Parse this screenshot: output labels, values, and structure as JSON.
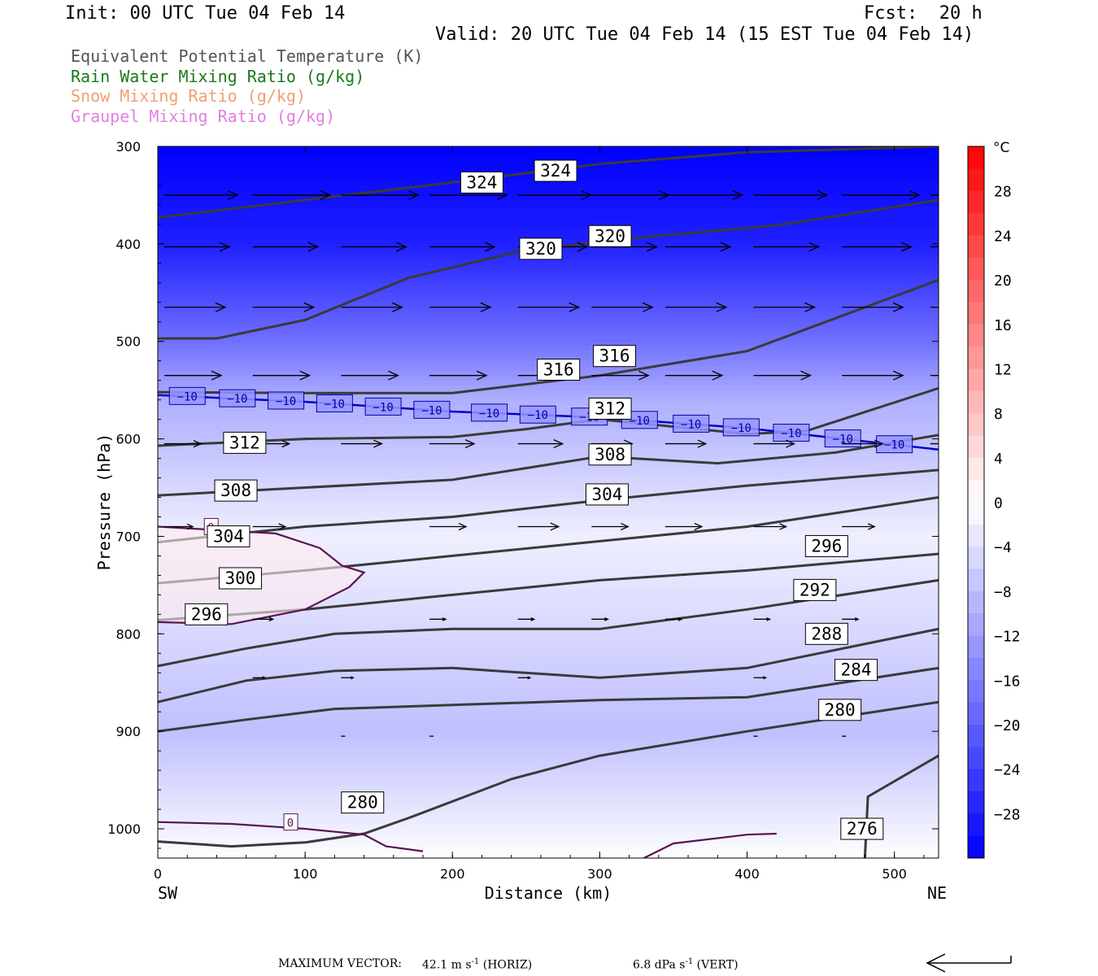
{
  "header": {
    "init": "Init: 00 UTC Tue 04 Feb 14",
    "fcst": "Fcst:  20 h",
    "valid": "Valid: 20 UTC Tue 04 Feb 14 (15 EST Tue 04 Feb 14)"
  },
  "legend": [
    {
      "text": "Equivalent Potential Temperature (K)",
      "color": "#555555"
    },
    {
      "text": "Rain Water Mixing Ratio (g/kg)",
      "color": "#1a7a1a"
    },
    {
      "text": "Snow Mixing Ratio (g/kg)",
      "color": "#f0a070"
    },
    {
      "text": "Graupel Mixing Ratio (g/kg)",
      "color": "#e080e0"
    }
  ],
  "chart_data": {
    "type": "heatmap",
    "xlabel": "Distance (km)",
    "ylabel": "Pressure (hPa)",
    "xlim": [
      0,
      530
    ],
    "ylim": [
      1030,
      300
    ],
    "x_ticks": [
      0,
      100,
      200,
      300,
      400,
      500
    ],
    "y_ticks": [
      300,
      400,
      500,
      600,
      700,
      800,
      900,
      1000
    ],
    "x_end_labels": {
      "left": "SW",
      "right": "NE"
    },
    "colorbar": {
      "unit": "°C",
      "tick_labels": [
        28,
        24,
        20,
        16,
        12,
        8,
        4,
        0,
        -4,
        -8,
        -12,
        -16,
        -20,
        -24,
        -28
      ],
      "range": [
        -32,
        32
      ],
      "cold_color": "#0000ff",
      "warm_color": "#ff0000",
      "neutral_color": "#ffffff"
    },
    "temperature_field_hint": {
      "pressure": [
        300,
        400,
        500,
        560,
        600,
        700,
        800,
        900,
        1000,
        1030
      ],
      "temp_c": [
        -32,
        -28,
        -18,
        -10,
        -8,
        -2,
        -5,
        -8,
        -2,
        0
      ]
    },
    "theta_e_contours": [
      {
        "label": "324",
        "points": [
          [
            0,
            373
          ],
          [
            100,
            355
          ],
          [
            200,
            337
          ],
          [
            300,
            318
          ],
          [
            400,
            306
          ],
          [
            530,
            300
          ]
        ]
      },
      {
        "label": "320",
        "points": [
          [
            0,
            497
          ],
          [
            40,
            497
          ],
          [
            100,
            478
          ],
          [
            170,
            435
          ],
          [
            250,
            406
          ],
          [
            330,
            393
          ],
          [
            420,
            381
          ],
          [
            530,
            355
          ]
        ]
      },
      {
        "label": "316",
        "points": [
          [
            0,
            552
          ],
          [
            100,
            553
          ],
          [
            200,
            553
          ],
          [
            300,
            535
          ],
          [
            400,
            510
          ],
          [
            530,
            437
          ]
        ]
      },
      {
        "label": "312",
        "points": [
          [
            0,
            607
          ],
          [
            100,
            600
          ],
          [
            200,
            598
          ],
          [
            250,
            590
          ],
          [
            300,
            580
          ],
          [
            400,
            595
          ],
          [
            440,
            592
          ],
          [
            530,
            548
          ]
        ]
      },
      {
        "label": "308",
        "points": [
          [
            0,
            658
          ],
          [
            100,
            650
          ],
          [
            200,
            642
          ],
          [
            300,
            618
          ],
          [
            380,
            625
          ],
          [
            460,
            614
          ],
          [
            530,
            596
          ]
        ]
      },
      {
        "label": "304",
        "points": [
          [
            0,
            706
          ],
          [
            100,
            690
          ],
          [
            200,
            680
          ],
          [
            300,
            663
          ],
          [
            400,
            648
          ],
          [
            530,
            632
          ]
        ]
      },
      {
        "label": "300",
        "points": [
          [
            0,
            748
          ],
          [
            100,
            735
          ],
          [
            200,
            720
          ],
          [
            300,
            705
          ],
          [
            400,
            690
          ],
          [
            530,
            660
          ]
        ]
      },
      {
        "label": "296",
        "points": [
          [
            0,
            786
          ],
          [
            100,
            775
          ],
          [
            200,
            760
          ],
          [
            300,
            745
          ],
          [
            400,
            735
          ],
          [
            530,
            718
          ]
        ]
      },
      {
        "label": "292",
        "points": [
          [
            0,
            833
          ],
          [
            60,
            815
          ],
          [
            120,
            800
          ],
          [
            200,
            795
          ],
          [
            300,
            795
          ],
          [
            400,
            775
          ],
          [
            530,
            745
          ]
        ]
      },
      {
        "label": "288",
        "points": [
          [
            0,
            870
          ],
          [
            60,
            848
          ],
          [
            120,
            838
          ],
          [
            200,
            835
          ],
          [
            300,
            845
          ],
          [
            400,
            835
          ],
          [
            530,
            795
          ]
        ]
      },
      {
        "label": "284",
        "points": [
          [
            0,
            900
          ],
          [
            60,
            888
          ],
          [
            120,
            877
          ],
          [
            200,
            873
          ],
          [
            300,
            868
          ],
          [
            400,
            865
          ],
          [
            530,
            835
          ]
        ]
      },
      {
        "label": "280",
        "points": [
          [
            0,
            1013
          ],
          [
            50,
            1018
          ],
          [
            100,
            1014
          ],
          [
            140,
            1005
          ],
          [
            170,
            989
          ],
          [
            240,
            949
          ],
          [
            300,
            925
          ],
          [
            400,
            900
          ],
          [
            530,
            870
          ]
        ]
      },
      {
        "label": "276",
        "points": [
          [
            480,
            1030
          ],
          [
            482,
            967
          ],
          [
            530,
            925
          ]
        ]
      }
    ],
    "theta_e_labels": [
      {
        "label": "324",
        "x": 220,
        "p": 337
      },
      {
        "label": "324",
        "x": 270,
        "p": 325
      },
      {
        "label": "320",
        "x": 260,
        "p": 405
      },
      {
        "label": "320",
        "x": 307,
        "p": 392
      },
      {
        "label": "316",
        "x": 272,
        "p": 529
      },
      {
        "label": "316",
        "x": 310,
        "p": 515
      },
      {
        "label": "312",
        "x": 59,
        "p": 604
      },
      {
        "label": "312",
        "x": 307,
        "p": 569
      },
      {
        "label": "308",
        "x": 53,
        "p": 653
      },
      {
        "label": "308",
        "x": 307,
        "p": 616
      },
      {
        "label": "304",
        "x": 48,
        "p": 700
      },
      {
        "label": "304",
        "x": 305,
        "p": 657
      },
      {
        "label": "300",
        "x": 56,
        "p": 743
      },
      {
        "label": "296",
        "x": 33,
        "p": 780
      },
      {
        "label": "296",
        "x": 454,
        "p": 710
      },
      {
        "label": "292",
        "x": 446,
        "p": 755
      },
      {
        "label": "288",
        "x": 454,
        "p": 800
      },
      {
        "label": "284",
        "x": 474,
        "p": 837
      },
      {
        "label": "280",
        "x": 463,
        "p": 878
      },
      {
        "label": "280",
        "x": 139,
        "p": 973
      },
      {
        "label": "276",
        "x": 478,
        "p": 1000
      }
    ],
    "isotherm_minus10": {
      "label": "−10",
      "color": "#0000cc",
      "points": [
        [
          0,
          555
        ],
        [
          100,
          562
        ],
        [
          200,
          572
        ],
        [
          300,
          578
        ],
        [
          400,
          589
        ],
        [
          530,
          611
        ]
      ],
      "label_x": [
        20,
        54,
        87,
        120,
        153,
        186,
        225,
        258,
        293,
        327,
        362,
        396,
        430,
        465,
        500
      ]
    },
    "zero_isotherm_contours": [
      {
        "label": "0",
        "points": [
          [
            0,
            690
          ],
          [
            80,
            697
          ],
          [
            110,
            712
          ],
          [
            125,
            730
          ],
          [
            140,
            737
          ],
          [
            130,
            752
          ],
          [
            100,
            775
          ],
          [
            50,
            790
          ],
          [
            0,
            788
          ]
        ],
        "label_x": 36,
        "label_p": 690
      },
      {
        "label": "0",
        "points": [
          [
            0,
            993
          ],
          [
            50,
            995
          ],
          [
            100,
            1000
          ],
          [
            140,
            1006
          ],
          [
            155,
            1018
          ],
          [
            180,
            1023
          ]
        ],
        "label_x": 90,
        "label_p": 993
      },
      {
        "label": "0",
        "points": [
          [
            330,
            1030
          ],
          [
            350,
            1015
          ],
          [
            400,
            1006
          ],
          [
            420,
            1005
          ]
        ],
        "label_x": null,
        "label_p": null
      }
    ],
    "wind_vectors": {
      "note": "horizontal wind arrows, mostly pointing east; length proportional to speed",
      "rows": [
        {
          "p": 350,
          "x": [
            0,
            60,
            120,
            180,
            240,
            290,
            340,
            400,
            460,
            520
          ],
          "u": [
            0.9,
            0.95,
            0.95,
            0.95,
            0.9,
            0.95,
            0.95,
            0.9,
            0.95,
            0.9
          ]
        },
        {
          "p": 403,
          "x": [
            0,
            60,
            120,
            180,
            240,
            290,
            340,
            400,
            460,
            520
          ],
          "u": [
            0.8,
            0.8,
            0.8,
            0.8,
            0.85,
            0.8,
            0.8,
            0.8,
            0.85,
            0.8
          ]
        },
        {
          "p": 465,
          "x": [
            0,
            60,
            120,
            180,
            240,
            290,
            340,
            400,
            460,
            520
          ],
          "u": [
            0.75,
            0.75,
            0.75,
            0.75,
            0.75,
            0.75,
            0.75,
            0.75,
            0.75,
            0.75
          ]
        },
        {
          "p": 535,
          "x": [
            0,
            60,
            120,
            180,
            240,
            290,
            340,
            400,
            460,
            520
          ],
          "u": [
            0.7,
            0.7,
            0.7,
            0.7,
            0.7,
            0.7,
            0.7,
            0.7,
            0.75,
            0.7
          ]
        },
        {
          "p": 605,
          "x": [
            0,
            60,
            120,
            180,
            240,
            290,
            340,
            400,
            460,
            520
          ],
          "u": [
            0.45,
            0.45,
            0.5,
            0.55,
            0.55,
            0.5,
            0.5,
            0.5,
            0.5,
            0.5
          ]
        },
        {
          "p": 690,
          "x": [
            0,
            60,
            180,
            240,
            290,
            340,
            400,
            460
          ],
          "u": [
            0.35,
            0.4,
            0.45,
            0.5,
            0.45,
            0.45,
            0.4,
            0.4
          ]
        },
        {
          "p": 785,
          "x": [
            60,
            180,
            240,
            290,
            340,
            400,
            460
          ],
          "u": [
            0.25,
            0.2,
            0.2,
            0.2,
            0.2,
            0.2,
            0.2
          ]
        },
        {
          "p": 845,
          "x": [
            60,
            120,
            240,
            400
          ],
          "u": [
            0.15,
            0.15,
            0.15,
            0.15
          ]
        },
        {
          "p": 905,
          "x": [
            120,
            180,
            400,
            460
          ],
          "u": [
            0.05,
            0.05,
            0.05,
            0.05
          ]
        }
      ],
      "max_horiz": "42.1",
      "max_vert": "6.8"
    }
  },
  "footer": {
    "max_vector_label": "MAXIMUM VECTOR:",
    "horiz_value": "42.1 m s",
    "horiz_unit_sup": "-1",
    "horiz_suffix": " (HORIZ)",
    "vert_value": "6.8 dPa s",
    "vert_unit_sup": "-1",
    "vert_suffix": " (VERT)"
  }
}
